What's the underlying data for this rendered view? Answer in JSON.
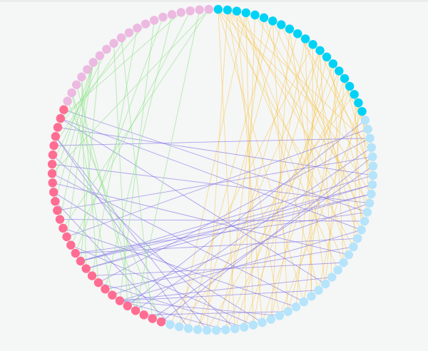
{
  "diagram": {
    "type": "circular-network",
    "groups": [
      {
        "key": "cyan",
        "count": 21,
        "color": "#00d2f6"
      },
      {
        "key": "lightblue",
        "count": 38,
        "color": "#b5e4fb"
      },
      {
        "key": "pink",
        "count": 29,
        "color": "#ff6d93"
      },
      {
        "key": "lavender",
        "count": 20,
        "color": "#ecb9e1"
      }
    ],
    "edge_sets": [
      {
        "from": "cyan",
        "to": "lightblue",
        "color": "#f6c244",
        "pairs": [
          [
            0,
            5
          ],
          [
            0,
            14
          ],
          [
            0,
            22
          ],
          [
            0,
            30
          ],
          [
            1,
            3
          ],
          [
            1,
            9
          ],
          [
            1,
            17
          ],
          [
            1,
            25
          ],
          [
            1,
            33
          ],
          [
            2,
            12
          ],
          [
            2,
            27
          ],
          [
            3,
            20
          ],
          [
            3,
            36
          ],
          [
            4,
            8
          ],
          [
            4,
            29
          ],
          [
            5,
            15
          ],
          [
            5,
            31
          ],
          [
            6,
            24
          ],
          [
            6,
            35
          ],
          [
            7,
            11
          ],
          [
            8,
            19
          ],
          [
            8,
            26
          ],
          [
            9,
            4
          ],
          [
            9,
            32
          ],
          [
            10,
            13
          ],
          [
            10,
            28
          ],
          [
            11,
            21
          ],
          [
            11,
            37
          ],
          [
            12,
            6
          ],
          [
            12,
            18
          ],
          [
            12,
            23
          ],
          [
            12,
            30
          ],
          [
            12,
            34
          ],
          [
            13,
            10
          ],
          [
            13,
            26
          ],
          [
            14,
            16
          ],
          [
            14,
            29
          ],
          [
            15,
            2
          ],
          [
            15,
            22
          ],
          [
            15,
            31
          ],
          [
            16,
            7
          ],
          [
            16,
            19
          ],
          [
            16,
            27
          ],
          [
            17,
            1
          ],
          [
            17,
            24
          ],
          [
            17,
            33
          ],
          [
            18,
            3
          ],
          [
            18,
            12
          ],
          [
            18,
            36
          ],
          [
            19,
            0
          ],
          [
            19,
            14
          ],
          [
            19,
            20
          ],
          [
            20,
            1
          ],
          [
            20,
            9
          ],
          [
            20,
            25
          ],
          [
            7,
            34
          ],
          [
            3,
            28
          ],
          [
            2,
            16
          ],
          [
            6,
            11
          ],
          [
            10,
            21
          ]
        ]
      },
      {
        "from": "pink",
        "to": "lightblue",
        "color": "#7a6ae8",
        "pairs": [
          [
            0,
            4
          ],
          [
            1,
            5
          ],
          [
            3,
            3
          ],
          [
            4,
            0
          ],
          [
            5,
            31
          ],
          [
            5,
            25
          ],
          [
            5,
            20
          ],
          [
            5,
            18
          ],
          [
            5,
            12
          ],
          [
            6,
            9
          ],
          [
            7,
            14
          ],
          [
            8,
            2
          ],
          [
            9,
            16
          ],
          [
            10,
            8
          ],
          [
            10,
            7
          ],
          [
            11,
            6
          ],
          [
            11,
            7
          ],
          [
            11,
            8
          ],
          [
            12,
            10
          ],
          [
            12,
            13
          ],
          [
            13,
            28
          ],
          [
            14,
            1
          ],
          [
            15,
            23
          ],
          [
            16,
            11
          ],
          [
            17,
            4
          ],
          [
            18,
            37
          ],
          [
            20,
            15
          ],
          [
            22,
            9
          ],
          [
            23,
            30
          ],
          [
            24,
            2
          ],
          [
            25,
            35
          ],
          [
            25,
            33
          ],
          [
            26,
            6
          ],
          [
            27,
            12
          ],
          [
            27,
            19
          ],
          [
            28,
            10
          ],
          [
            2,
            24
          ],
          [
            19,
            27
          ],
          [
            21,
            22
          ],
          [
            8,
            29
          ]
        ]
      },
      {
        "from": "lavender",
        "to": "pink",
        "color": "#86e37f",
        "pairs": [
          [
            0,
            0
          ],
          [
            1,
            2
          ],
          [
            1,
            6
          ],
          [
            2,
            3
          ],
          [
            3,
            8
          ],
          [
            3,
            10
          ],
          [
            5,
            14
          ],
          [
            5,
            16
          ],
          [
            5,
            18
          ],
          [
            5,
            20
          ],
          [
            6,
            11
          ],
          [
            7,
            22
          ],
          [
            8,
            4
          ],
          [
            9,
            1
          ],
          [
            10,
            24
          ],
          [
            11,
            9
          ],
          [
            12,
            26
          ],
          [
            13,
            5
          ],
          [
            14,
            12
          ],
          [
            15,
            7
          ],
          [
            16,
            27
          ],
          [
            17,
            13
          ],
          [
            18,
            3
          ],
          [
            19,
            15
          ],
          [
            19,
            21
          ]
        ]
      }
    ]
  }
}
